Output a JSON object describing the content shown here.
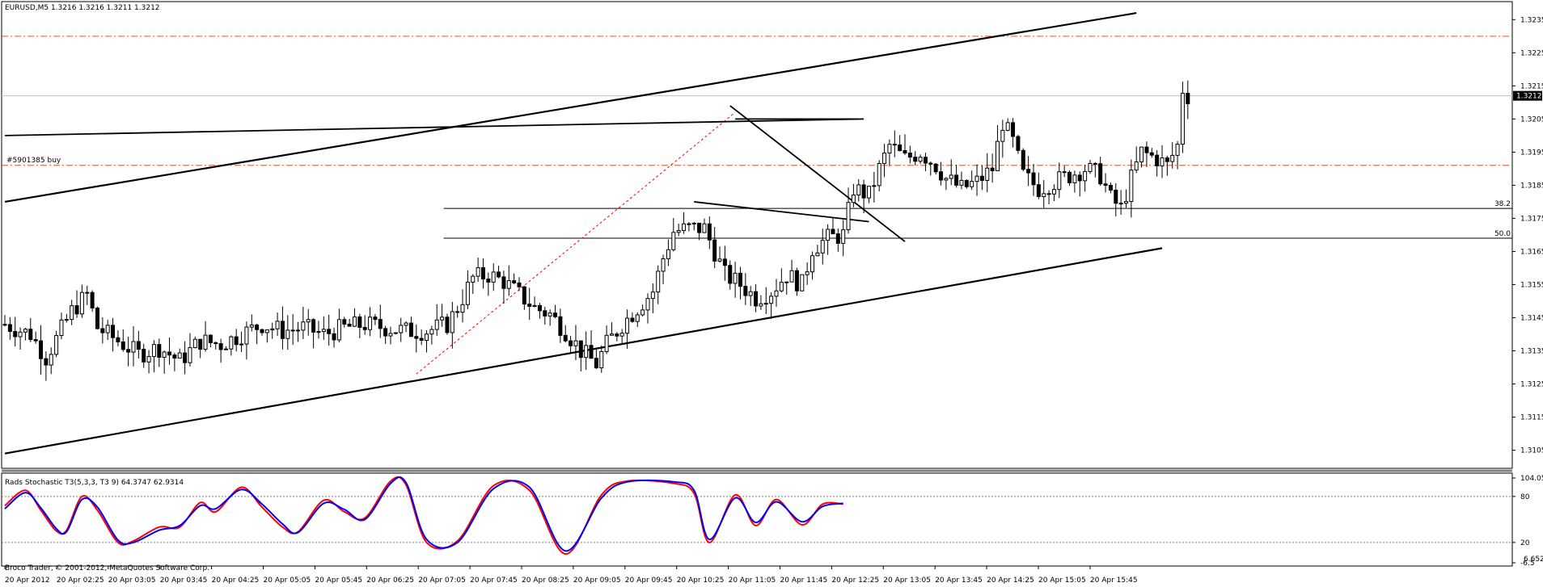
{
  "header": {
    "symbol": "EURUSD,M5",
    "ohlc": "1.3216 1.3216 1.3211 1.3212"
  },
  "order_label": "#5901385 buy",
  "footer": "Broco Trader, © 2001-2012, MetaQuotes Software Corp.",
  "colors": {
    "background": "#ffffff",
    "candle": "#000000",
    "order_line": "#e8531f",
    "fib_trend": "#ff0000",
    "stoch_main": "#ff0000",
    "stoch_signal": "#0000ff",
    "price_marker": "#000000"
  },
  "chart_data": [
    {
      "type": "candlestick",
      "title": "EURUSD,M5",
      "ylim": [
        1.3101,
        1.3238
      ],
      "y_ticks": [
        "1.3235",
        "1.3225",
        "1.3215",
        "1.3205",
        "1.3195",
        "1.3185",
        "1.3175",
        "1.3165",
        "1.3155",
        "1.3145",
        "1.3135",
        "1.3125",
        "1.3115",
        "1.3105"
      ],
      "x_ticks": [
        "20 Apr 2012",
        "20 Apr 02:25",
        "20 Apr 03:05",
        "20 Apr 03:45",
        "20 Apr 04:25",
        "20 Apr 05:05",
        "20 Apr 05:45",
        "20 Apr 06:25",
        "20 Apr 07:05",
        "20 Apr 07:45",
        "20 Apr 08:25",
        "20 Apr 09:05",
        "20 Apr 09:45",
        "20 Apr 10:25",
        "20 Apr 11:05",
        "20 Apr 11:45",
        "20 Apr 12:25",
        "20 Apr 13:05",
        "20 Apr 13:45",
        "20 Apr 14:25",
        "20 Apr 15:05",
        "20 Apr 15:45"
      ],
      "current_price": "1.3212",
      "close_anchors": [
        [
          0,
          1.3143
        ],
        [
          5,
          1.314
        ],
        [
          8,
          1.3133
        ],
        [
          13,
          1.3147
        ],
        [
          16,
          1.3152
        ],
        [
          18,
          1.3142
        ],
        [
          22,
          1.3138
        ],
        [
          26,
          1.3134
        ],
        [
          30,
          1.3136
        ],
        [
          34,
          1.3132
        ],
        [
          38,
          1.3138
        ],
        [
          42,
          1.3137
        ],
        [
          46,
          1.314
        ],
        [
          50,
          1.3143
        ],
        [
          54,
          1.3141
        ],
        [
          58,
          1.3142
        ],
        [
          62,
          1.314
        ],
        [
          66,
          1.3142
        ],
        [
          70,
          1.3143
        ],
        [
          74,
          1.3142
        ],
        [
          78,
          1.3141
        ],
        [
          82,
          1.3141
        ],
        [
          86,
          1.3143
        ],
        [
          88,
          1.3148
        ],
        [
          91,
          1.3157
        ],
        [
          94,
          1.3158
        ],
        [
          97,
          1.3156
        ],
        [
          100,
          1.3152
        ],
        [
          103,
          1.3148
        ],
        [
          106,
          1.3146
        ],
        [
          109,
          1.3141
        ],
        [
          112,
          1.3135
        ],
        [
          115,
          1.3131
        ],
        [
          117,
          1.3137
        ],
        [
          120,
          1.3143
        ],
        [
          123,
          1.3148
        ],
        [
          126,
          1.3153
        ],
        [
          128,
          1.3163
        ],
        [
          130,
          1.3171
        ],
        [
          133,
          1.3172
        ],
        [
          136,
          1.3172
        ],
        [
          138,
          1.3165
        ],
        [
          140,
          1.3158
        ],
        [
          143,
          1.3155
        ],
        [
          146,
          1.3151
        ],
        [
          149,
          1.3153
        ],
        [
          152,
          1.3158
        ],
        [
          155,
          1.3155
        ],
        [
          157,
          1.3166
        ],
        [
          160,
          1.3169
        ],
        [
          163,
          1.317
        ],
        [
          165,
          1.3184
        ],
        [
          168,
          1.3182
        ],
        [
          170,
          1.319
        ],
        [
          172,
          1.3197
        ],
        [
          175,
          1.3193
        ],
        [
          178,
          1.3195
        ],
        [
          181,
          1.3191
        ],
        [
          183,
          1.3187
        ],
        [
          186,
          1.3184
        ],
        [
          189,
          1.3186
        ],
        [
          192,
          1.319
        ],
        [
          194,
          1.3204
        ],
        [
          196,
          1.3198
        ],
        [
          198,
          1.3188
        ],
        [
          201,
          1.3184
        ],
        [
          204,
          1.3186
        ],
        [
          207,
          1.3188
        ],
        [
          210,
          1.319
        ],
        [
          213,
          1.3188
        ],
        [
          215,
          1.3181
        ],
        [
          217,
          1.3178
        ],
        [
          219,
          1.3187
        ],
        [
          221,
          1.3195
        ],
        [
          224,
          1.3193
        ],
        [
          226,
          1.3191
        ],
        [
          228,
          1.3197
        ],
        [
          229,
          1.3214
        ],
        [
          230,
          1.3212
        ]
      ],
      "horizontal_levels": [
        {
          "price": 1.323,
          "style": "dash-dot",
          "color": "#e8531f"
        },
        {
          "price": 1.3191,
          "style": "dash-dot",
          "color": "#e8531f",
          "label": "#5901385 buy"
        },
        {
          "price": 1.3212,
          "style": "solid",
          "color": "#c0c0c0"
        }
      ],
      "fibonacci_levels": [
        {
          "label": "38.2",
          "price": 1.3178
        },
        {
          "label": "50.0",
          "price": 1.3169
        }
      ],
      "trendlines": [
        {
          "from": [
            0,
            1.318
          ],
          "to": [
            220,
            1.3237
          ]
        },
        {
          "from": [
            0,
            1.3104
          ],
          "to": [
            225,
            1.3166
          ]
        },
        {
          "from": [
            0,
            1.32
          ],
          "to": [
            167,
            1.3205
          ]
        },
        {
          "from": [
            142,
            1.3205
          ],
          "to": [
            166,
            1.3205
          ]
        },
        {
          "from": [
            141,
            1.3209
          ],
          "to": [
            175,
            1.3168
          ]
        },
        {
          "from": [
            134,
            1.318
          ],
          "to": [
            168,
            1.3174
          ]
        }
      ],
      "fib_trend_line": {
        "from": [
          80,
          1.3128
        ],
        "to": [
          142,
          1.3207
        ]
      }
    },
    {
      "type": "line",
      "title": "Rads Stochastic T3(5,3,3, T3 9) 64.3747 62.9314",
      "ylim": [
        -6.5,
        104.055
      ],
      "y_ticks": [
        "104.055",
        "80",
        "20",
        "-6.5"
      ],
      "y_ticks_overlay": "6.6521",
      "levels": [
        80,
        20
      ],
      "series": [
        {
          "color": "#ff0000",
          "points": [
            [
              0,
              68
            ],
            [
              4,
              88
            ],
            [
              7,
              62
            ],
            [
              10,
              35
            ],
            [
              12,
              36
            ],
            [
              15,
              80
            ],
            [
              18,
              62
            ],
            [
              22,
              20
            ],
            [
              25,
              22
            ],
            [
              30,
              40
            ],
            [
              34,
              40
            ],
            [
              38,
              72
            ],
            [
              41,
              60
            ],
            [
              46,
              92
            ],
            [
              50,
              66
            ],
            [
              54,
              40
            ],
            [
              57,
              34
            ],
            [
              62,
              75
            ],
            [
              66,
              60
            ],
            [
              70,
              52
            ],
            [
              75,
              100
            ],
            [
              78,
              95
            ],
            [
              82,
              20
            ],
            [
              88,
              22
            ],
            [
              95,
              94
            ],
            [
              102,
              88
            ],
            [
              109,
              5
            ],
            [
              116,
              82
            ],
            [
              121,
              100
            ],
            [
              130,
              97
            ],
            [
              134,
              84
            ],
            [
              137,
              20
            ],
            [
              142,
              82
            ],
            [
              146,
              42
            ],
            [
              150,
              76
            ],
            [
              155,
              43
            ],
            [
              159,
              70
            ],
            [
              163,
              70
            ]
          ]
        },
        {
          "color": "#0000ff",
          "points": [
            [
              0,
              64
            ],
            [
              4,
              85
            ],
            [
              7,
              65
            ],
            [
              10,
              38
            ],
            [
              12,
              34
            ],
            [
              15,
              76
            ],
            [
              18,
              66
            ],
            [
              22,
              23
            ],
            [
              25,
              20
            ],
            [
              30,
              36
            ],
            [
              34,
              42
            ],
            [
              38,
              68
            ],
            [
              41,
              64
            ],
            [
              46,
              89
            ],
            [
              50,
              70
            ],
            [
              54,
              44
            ],
            [
              57,
              33
            ],
            [
              62,
              71
            ],
            [
              66,
              63
            ],
            [
              70,
              50
            ],
            [
              75,
              97
            ],
            [
              78,
              98
            ],
            [
              82,
              24
            ],
            [
              88,
              20
            ],
            [
              95,
              90
            ],
            [
              102,
              92
            ],
            [
              109,
              9
            ],
            [
              116,
              78
            ],
            [
              121,
              99
            ],
            [
              130,
              99
            ],
            [
              134,
              88
            ],
            [
              137,
              24
            ],
            [
              142,
              78
            ],
            [
              146,
              46
            ],
            [
              150,
              73
            ],
            [
              155,
              47
            ],
            [
              159,
              67
            ],
            [
              163,
              71
            ]
          ]
        }
      ]
    }
  ]
}
